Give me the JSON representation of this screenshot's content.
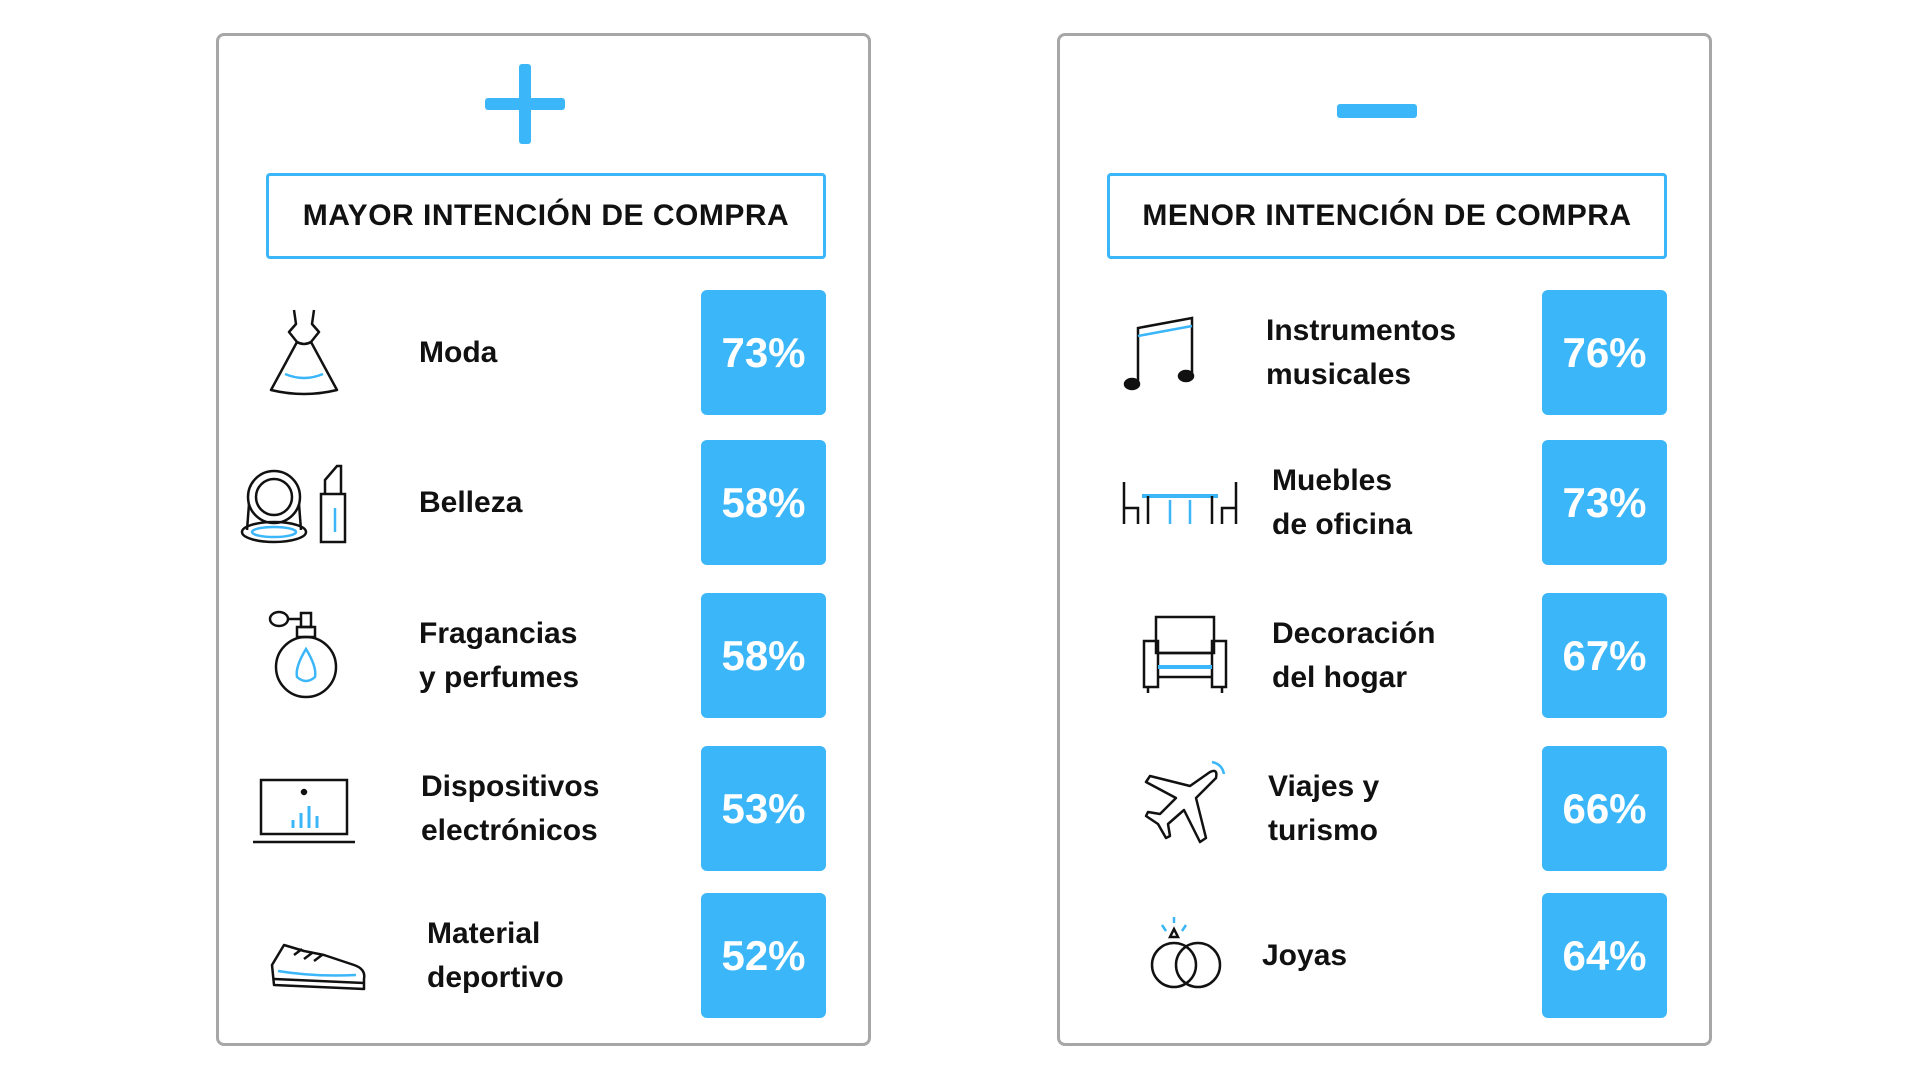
{
  "left_panel": {
    "sign": "plus-icon",
    "header": "MAYOR INTENCIÓN DE COMPRA",
    "items": [
      {
        "label": "Moda",
        "value": "73%",
        "icon": "dress-icon"
      },
      {
        "label": "Belleza",
        "value": "58%",
        "icon": "makeup-icon"
      },
      {
        "label": "Fragancias\ny perfumes",
        "value": "58%",
        "icon": "perfume-icon"
      },
      {
        "label": "Dispositivos\nelectrónicos",
        "value": "53%",
        "icon": "laptop-icon"
      },
      {
        "label": "Material\ndeportivo",
        "value": "52%",
        "icon": "sneaker-icon"
      }
    ]
  },
  "right_panel": {
    "sign": "minus-icon",
    "header": "MENOR INTENCIÓN DE COMPRA",
    "items": [
      {
        "label": "Instrumentos\nmusicales",
        "value": "76%",
        "icon": "music-note-icon"
      },
      {
        "label": "Muebles\nde oficina",
        "value": "73%",
        "icon": "office-furniture-icon"
      },
      {
        "label": "Decoración\ndel hogar",
        "value": "67%",
        "icon": "armchair-icon"
      },
      {
        "label": "Viajes y\nturismo",
        "value": "66%",
        "icon": "airplane-icon"
      },
      {
        "label": "Joyas",
        "value": "64%",
        "icon": "rings-icon"
      }
    ]
  },
  "colors": {
    "accent": "#3bb6f9",
    "border": "#a7a7a7",
    "text": "#111111"
  }
}
